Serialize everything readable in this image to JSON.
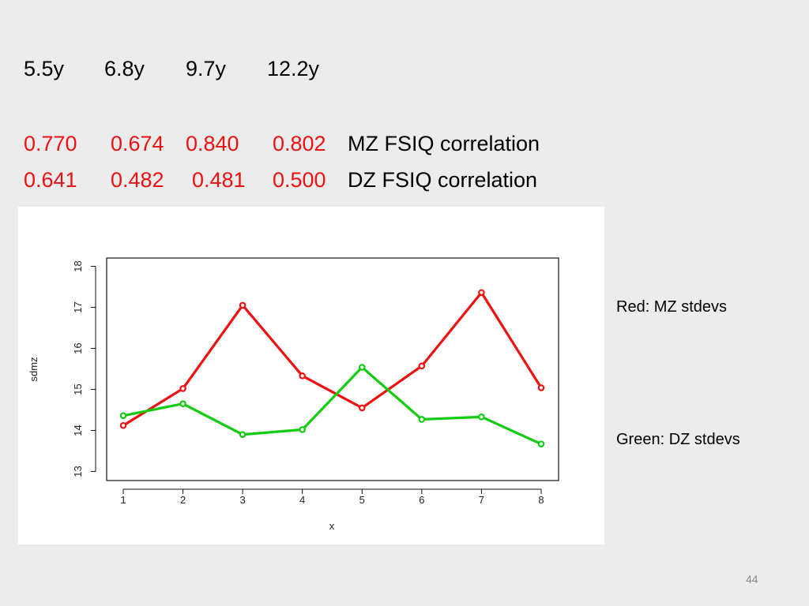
{
  "header": {
    "ages": [
      "5.5y",
      "6.8y",
      "9.7y",
      "12.2y"
    ],
    "mz_values": [
      "0.770",
      "0.674",
      "0.840",
      "0.802"
    ],
    "mz_label": "MZ FSIQ correlation",
    "dz_values": [
      "0.641",
      "0.482",
      "0.481",
      "0.500"
    ],
    "dz_label": "DZ  FSIQ correlation"
  },
  "captions": {
    "red": "Red: MZ stdevs",
    "green": "Green: DZ stdevs"
  },
  "slide_number": "44",
  "colors": {
    "background": "#ececec",
    "mz": "#ee1111",
    "dz": "#11cc11",
    "correlation_text": "#ee1111"
  },
  "chart_data": {
    "type": "line",
    "x": [
      1,
      2,
      3,
      4,
      5,
      6,
      7,
      8
    ],
    "xlabel": "x",
    "ylabel": "sdmz",
    "xlim": [
      1,
      8
    ],
    "ylim": [
      13,
      18
    ],
    "xticks": [
      "1",
      "2",
      "3",
      "4",
      "5",
      "6",
      "7",
      "8"
    ],
    "yticks": [
      "13",
      "14",
      "15",
      "16",
      "17",
      "18"
    ],
    "grid": false,
    "series": [
      {
        "values": [
          14.12,
          15.02,
          17.05,
          15.33,
          14.55,
          15.57,
          17.36,
          15.04
        ],
        "color": "#ee1111"
      },
      {
        "values": [
          14.36,
          14.65,
          13.9,
          14.02,
          15.54,
          14.27,
          14.33,
          13.67
        ],
        "color": "#11cc11"
      }
    ]
  }
}
